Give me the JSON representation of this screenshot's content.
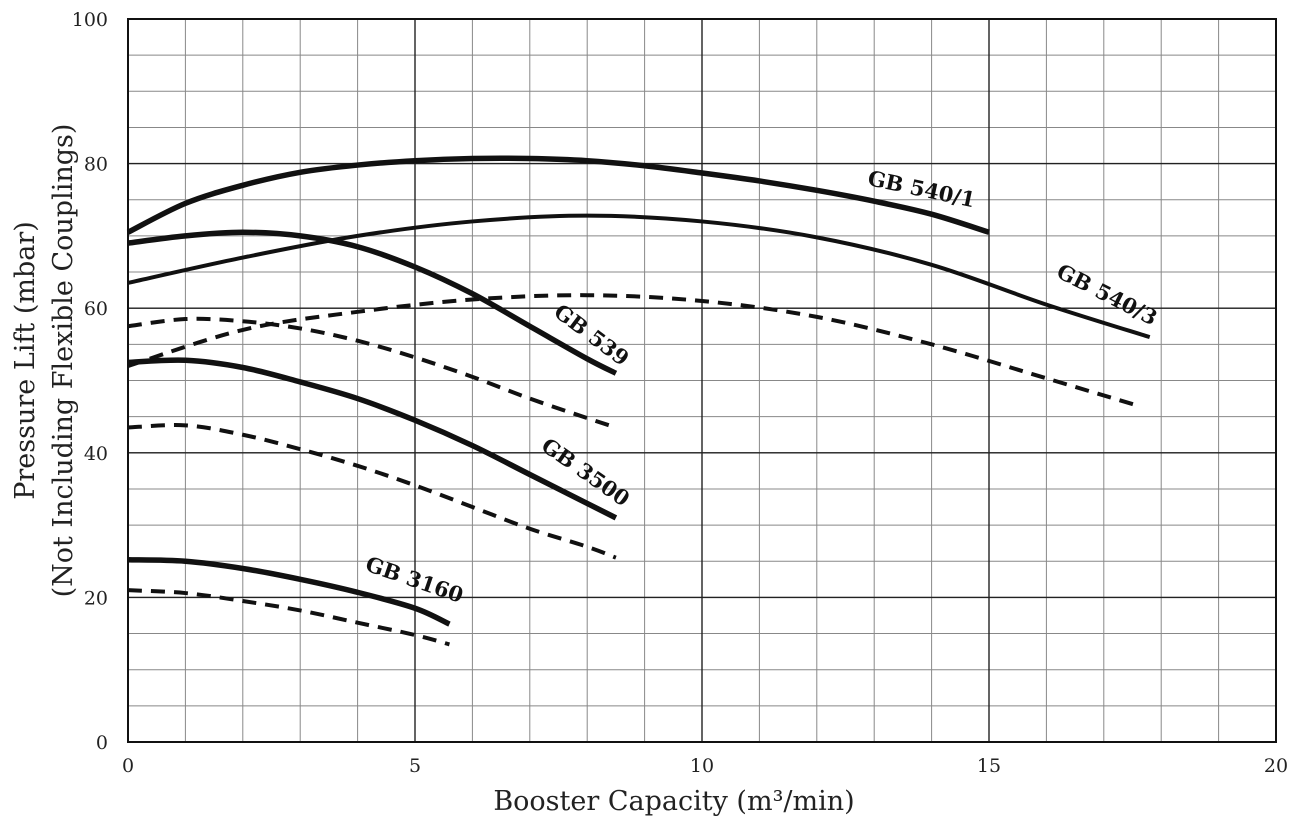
{
  "chart_data": {
    "type": "line",
    "title": "",
    "xlabel": "Booster Capacity (m³/min)",
    "ylabel": [
      "Pressure Lift (mbar)",
      "(Not Including Flexible Couplings)"
    ],
    "xlim": [
      0,
      20
    ],
    "ylim": [
      0,
      100
    ],
    "x_ticks": [
      0,
      5,
      10,
      15,
      20
    ],
    "y_ticks": [
      0,
      20,
      40,
      60,
      80,
      100
    ],
    "grid": true,
    "legend": "none",
    "series": [
      {
        "name": "GB 540/1",
        "style": "solid",
        "weight": "heavy",
        "x": [
          0,
          1,
          2,
          3,
          4,
          5,
          6,
          7,
          8,
          9,
          10,
          11,
          12,
          13,
          14,
          15
        ],
        "y": [
          70.5,
          74.5,
          77.0,
          78.8,
          79.8,
          80.4,
          80.7,
          80.7,
          80.4,
          79.7,
          78.7,
          77.6,
          76.3,
          74.8,
          73.0,
          70.5
        ]
      },
      {
        "name": "GB 540/3",
        "style": "solid",
        "weight": "normal",
        "x": [
          0,
          2,
          4,
          6,
          8,
          10,
          12,
          14,
          16,
          17.8
        ],
        "y": [
          63.5,
          67.0,
          70.0,
          72.0,
          72.8,
          72.0,
          69.8,
          66.0,
          60.5,
          56.0
        ]
      },
      {
        "name": "GB 540/3",
        "style": "dashed",
        "weight": "normal",
        "x": [
          0,
          2,
          4,
          6,
          8,
          10,
          12,
          14,
          16,
          17.6
        ],
        "y": [
          52.0,
          57.0,
          59.5,
          61.2,
          61.8,
          61.0,
          58.8,
          55.0,
          50.3,
          46.5
        ]
      },
      {
        "name": "GB 539",
        "style": "solid",
        "weight": "heavy",
        "x": [
          0,
          1,
          2,
          3,
          4,
          5,
          6,
          7,
          8,
          8.5
        ],
        "y": [
          69.0,
          70.0,
          70.5,
          70.0,
          68.5,
          65.7,
          62.0,
          57.5,
          53.0,
          51.0
        ]
      },
      {
        "name": "GB 539",
        "style": "dashed",
        "weight": "normal",
        "x": [
          0,
          1,
          2,
          3,
          4,
          5,
          6,
          7,
          8,
          8.5
        ],
        "y": [
          57.5,
          58.5,
          58.2,
          57.2,
          55.5,
          53.2,
          50.5,
          47.5,
          44.8,
          43.5
        ]
      },
      {
        "name": "GB 3500",
        "style": "solid",
        "weight": "heavy",
        "x": [
          0,
          1,
          2,
          3,
          4,
          5,
          6,
          7,
          8,
          8.5
        ],
        "y": [
          52.5,
          52.8,
          51.8,
          49.8,
          47.5,
          44.5,
          41.0,
          37.0,
          33.0,
          31.0
        ]
      },
      {
        "name": "GB 3500",
        "style": "dashed",
        "weight": "normal",
        "x": [
          0,
          1,
          2,
          3,
          4,
          5,
          6,
          7,
          8,
          8.5
        ],
        "y": [
          43.5,
          43.8,
          42.5,
          40.5,
          38.2,
          35.5,
          32.5,
          29.5,
          27.0,
          25.5
        ]
      },
      {
        "name": "GB 3160",
        "style": "solid",
        "weight": "heavy",
        "x": [
          0,
          1,
          2,
          3,
          4,
          5,
          5.6
        ],
        "y": [
          25.2,
          25.0,
          24.0,
          22.5,
          20.7,
          18.5,
          16.3
        ]
      },
      {
        "name": "GB 3160",
        "style": "dashed",
        "weight": "normal",
        "x": [
          0,
          1,
          2,
          3,
          4,
          5,
          5.6
        ],
        "y": [
          21.0,
          20.6,
          19.5,
          18.2,
          16.5,
          14.8,
          13.5
        ]
      }
    ],
    "annotations": [
      {
        "text": "GB 540/1",
        "x": 13.8,
        "y": 75.5,
        "angle": 12
      },
      {
        "text": "GB 540/3",
        "x": 17.0,
        "y": 61.0,
        "angle": 27
      },
      {
        "text": "GB 539",
        "x": 8.0,
        "y": 55.5,
        "angle": 37
      },
      {
        "text": "GB 3500",
        "x": 7.9,
        "y": 36.5,
        "angle": 35
      },
      {
        "text": "GB 3160",
        "x": 4.95,
        "y": 21.5,
        "angle": 19
      }
    ]
  }
}
